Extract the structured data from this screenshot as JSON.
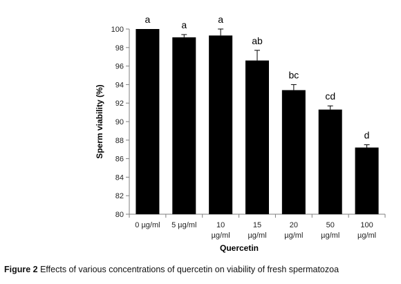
{
  "chart_data": {
    "type": "bar",
    "categories": [
      [
        "0 µg/ml"
      ],
      [
        "5 µg/ml"
      ],
      [
        "10",
        "µg/ml"
      ],
      [
        "15",
        "µg/ml"
      ],
      [
        "20",
        "µg/ml"
      ],
      [
        "50",
        "µg/ml"
      ],
      [
        "100",
        "µg/ml"
      ]
    ],
    "values": [
      100,
      99.1,
      99.3,
      96.6,
      93.4,
      91.3,
      87.2
    ],
    "errors": [
      0,
      0.3,
      0.7,
      1.1,
      0.6,
      0.4,
      0.3
    ],
    "significance_labels": [
      "a",
      "a",
      "a",
      "ab",
      "bc",
      "cd",
      "d"
    ],
    "xlabel": "Quercetin",
    "ylabel": "Sperm viability (%)",
    "ylim": [
      80,
      100
    ],
    "yticks": [
      80,
      82,
      84,
      86,
      88,
      90,
      92,
      94,
      96,
      98,
      100
    ],
    "bar_color": "#000000",
    "grid": false
  },
  "caption": {
    "figure_number": "Figure 2",
    "text": " Effects of various concentrations of quercetin on viability of fresh spermatozoa"
  }
}
